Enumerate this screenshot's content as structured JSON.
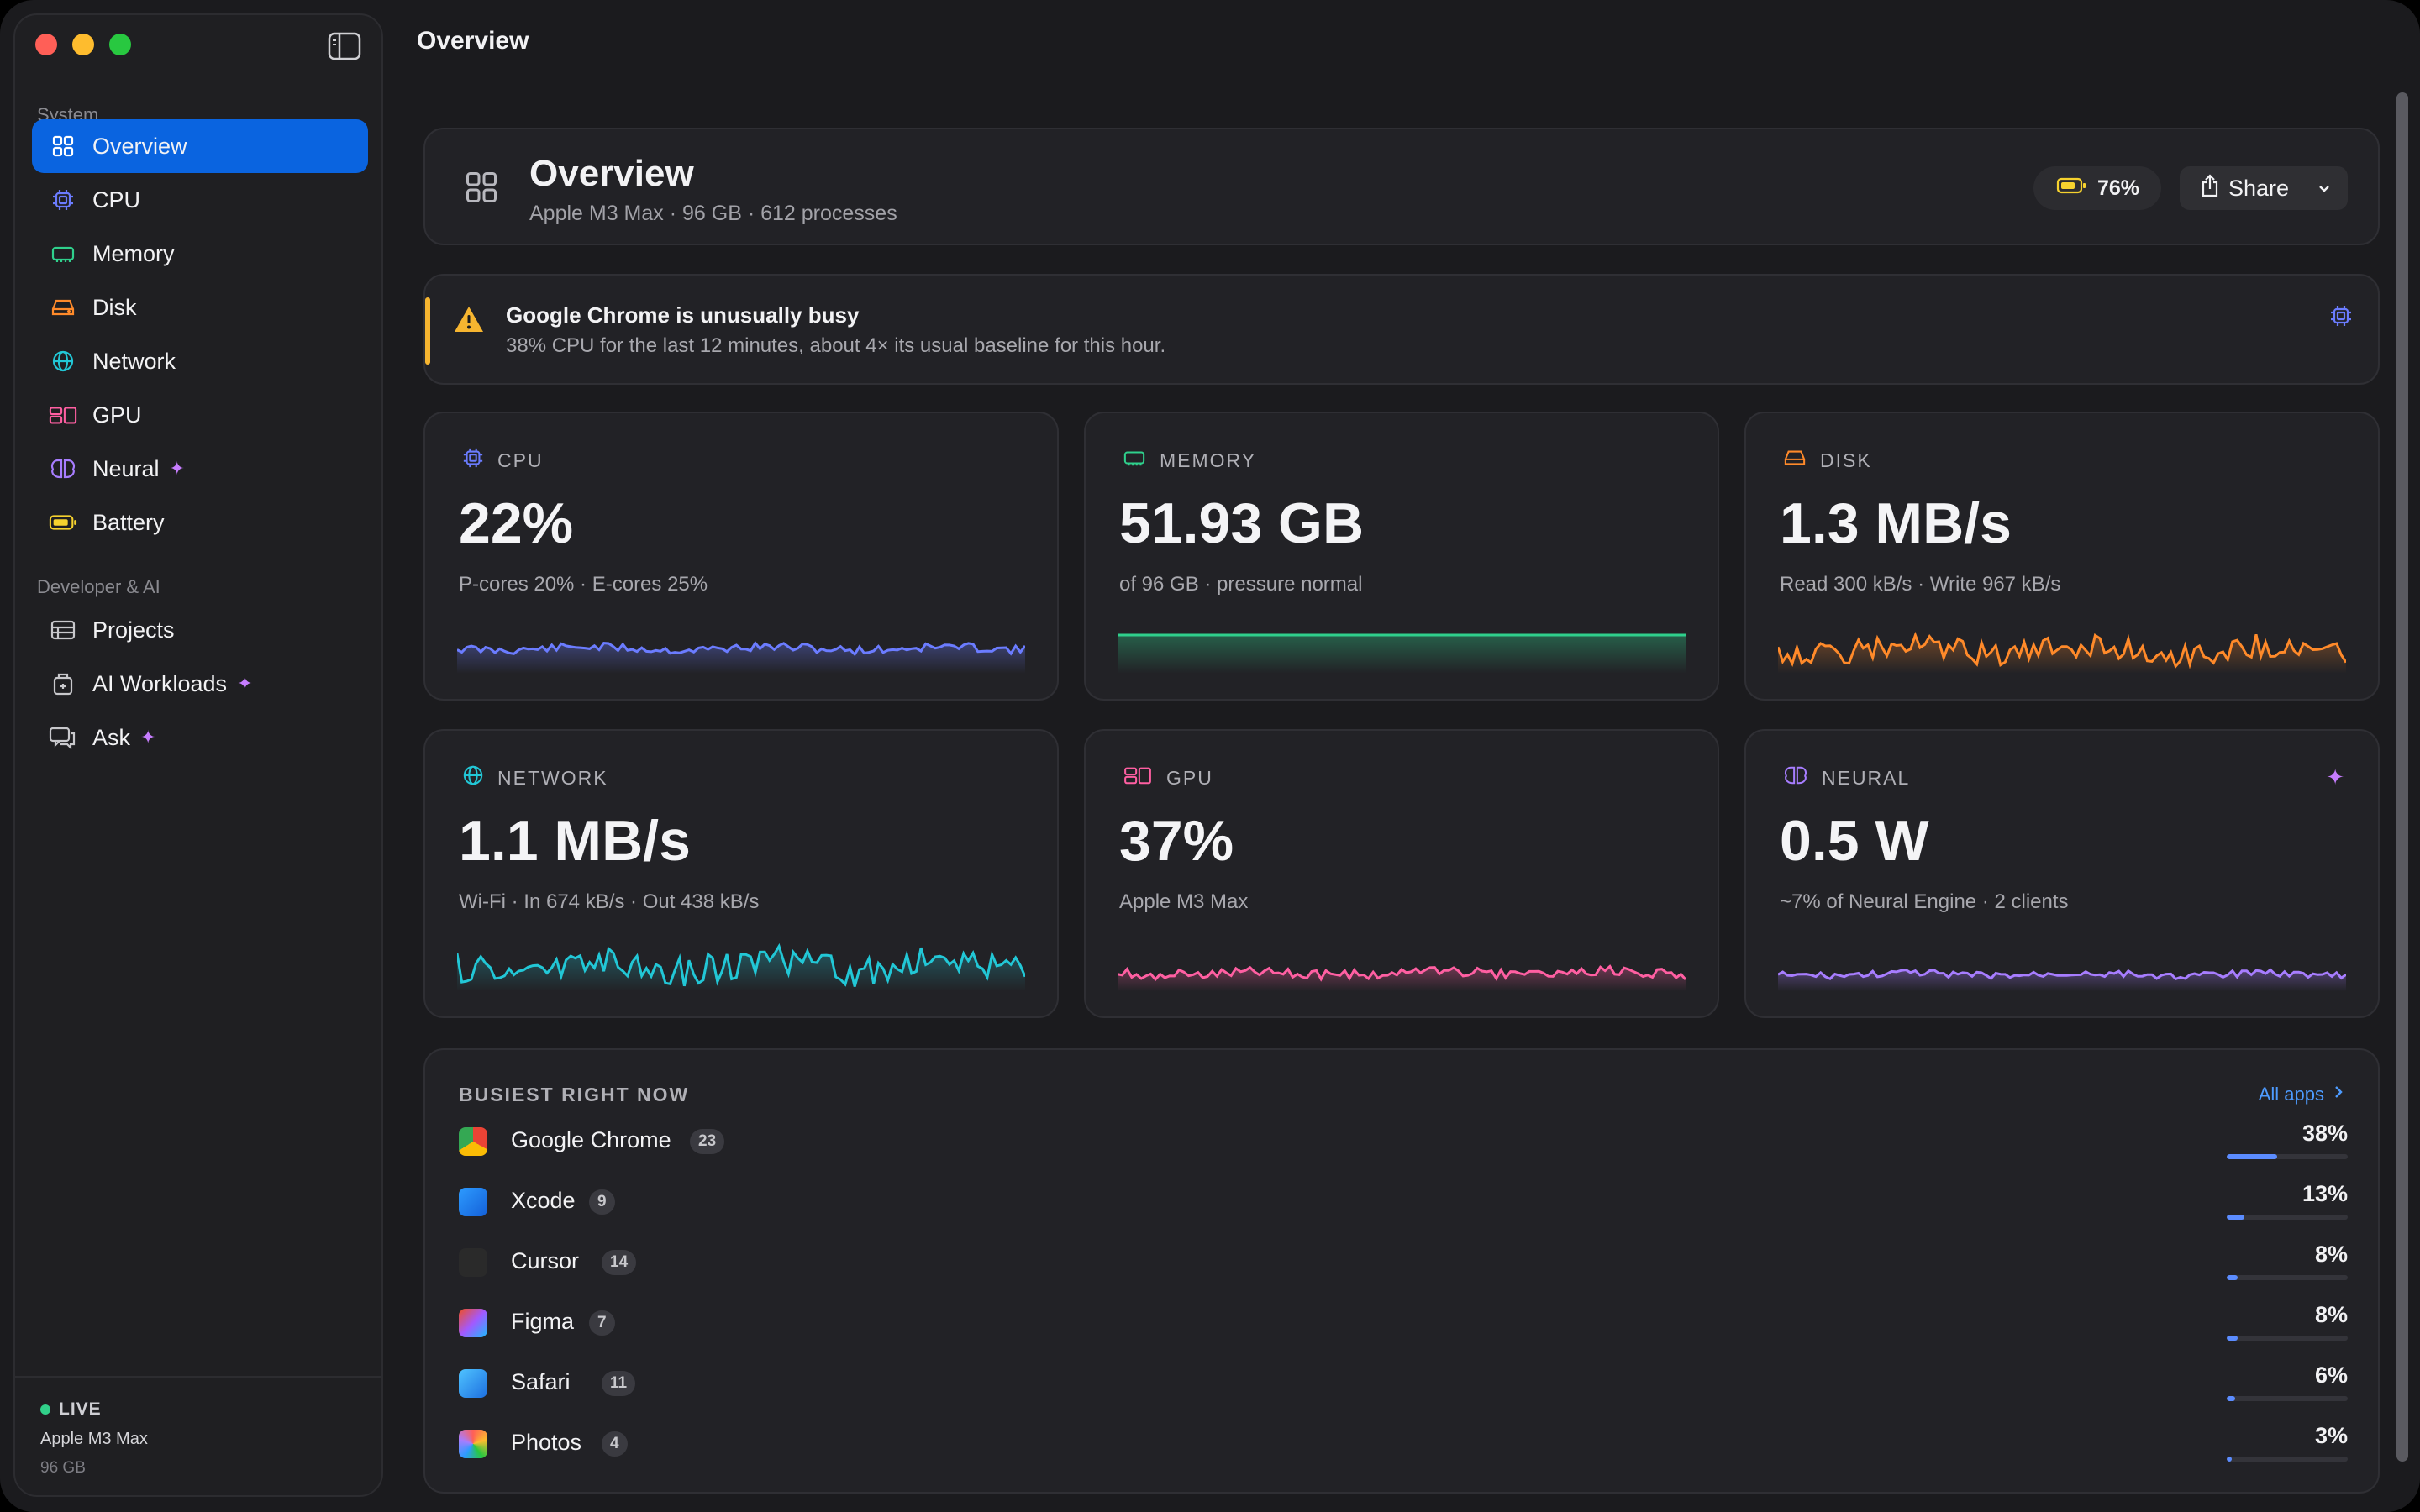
{
  "window": {
    "title": "Overview"
  },
  "sidebar": {
    "sections": [
      {
        "label": "System",
        "items": [
          {
            "label": "Overview",
            "icon": "grid-icon",
            "active": true
          },
          {
            "label": "CPU",
            "icon": "cpu-icon"
          },
          {
            "label": "Memory",
            "icon": "memory-icon"
          },
          {
            "label": "Disk",
            "icon": "disk-icon"
          },
          {
            "label": "Network",
            "icon": "globe-icon"
          },
          {
            "label": "GPU",
            "icon": "gpu-icon"
          },
          {
            "label": "Neural",
            "icon": "brain-icon",
            "sparkle": true
          },
          {
            "label": "Battery",
            "icon": "battery-icon"
          }
        ]
      },
      {
        "label": "Developer & AI",
        "items": [
          {
            "label": "Projects",
            "icon": "projects-icon"
          },
          {
            "label": "AI Workloads",
            "icon": "workloads-icon",
            "sparkle": true
          },
          {
            "label": "Ask",
            "icon": "chat-icon",
            "sparkle": true
          }
        ]
      }
    ],
    "footer": {
      "status": "LIVE",
      "chip": "Apple M3 Max",
      "memory": "96 GB"
    }
  },
  "header": {
    "title": "Overview",
    "subtitle": "Apple M3 Max · 96 GB · 612 processes",
    "battery": "76%",
    "share_label": "Share"
  },
  "alert": {
    "title": "Google Chrome is unusually busy",
    "message": "38% CPU for the last 12 minutes, about 4× its usual baseline for this hour."
  },
  "metrics": [
    {
      "label": "CPU",
      "value": "22%",
      "sub": "P-cores 20% · E-cores 25%",
      "color": "#6b7cff",
      "icon": "cpu-icon"
    },
    {
      "label": "MEMORY",
      "value": "51.93 GB",
      "sub": "of 96 GB · pressure normal",
      "color": "#2fd08c",
      "icon": "memory-icon"
    },
    {
      "label": "DISK",
      "value": "1.3 MB/s",
      "sub": "Read 300 kB/s · Write 967 kB/s",
      "color": "#ff8a2a",
      "icon": "disk-icon"
    },
    {
      "label": "NETWORK",
      "value": "1.1 MB/s",
      "sub": "Wi-Fi · In 674 kB/s · Out 438 kB/s",
      "color": "#22c7d6",
      "icon": "globe-icon"
    },
    {
      "label": "GPU",
      "value": "37%",
      "sub": "Apple M3 Max",
      "color": "#ff5fa2",
      "icon": "gpu-icon"
    },
    {
      "label": "NEURAL",
      "value": "0.5 W",
      "sub": "~7% of Neural Engine · 2 clients",
      "color": "#a77dff",
      "icon": "brain-icon",
      "sparkle": true
    }
  ],
  "busiest": {
    "title": "BUSIEST RIGHT NOW",
    "all_apps_label": "All apps",
    "apps": [
      {
        "name": "Google Chrome",
        "count": "23",
        "percent": "38%",
        "fraction": 0.38,
        "icon": "chrome-icon"
      },
      {
        "name": "Xcode",
        "count": "9",
        "percent": "13%",
        "fraction": 0.13,
        "icon": "xcode-icon"
      },
      {
        "name": "Cursor",
        "count": "14",
        "percent": "8%",
        "fraction": 0.08,
        "icon": "cursor-icon"
      },
      {
        "name": "Figma",
        "count": "7",
        "percent": "8%",
        "fraction": 0.08,
        "icon": "figma-icon"
      },
      {
        "name": "Safari",
        "count": "11",
        "percent": "6%",
        "fraction": 0.06,
        "icon": "safari-icon"
      },
      {
        "name": "Photos",
        "count": "4",
        "percent": "3%",
        "fraction": 0.03,
        "icon": "photos-icon"
      }
    ]
  }
}
